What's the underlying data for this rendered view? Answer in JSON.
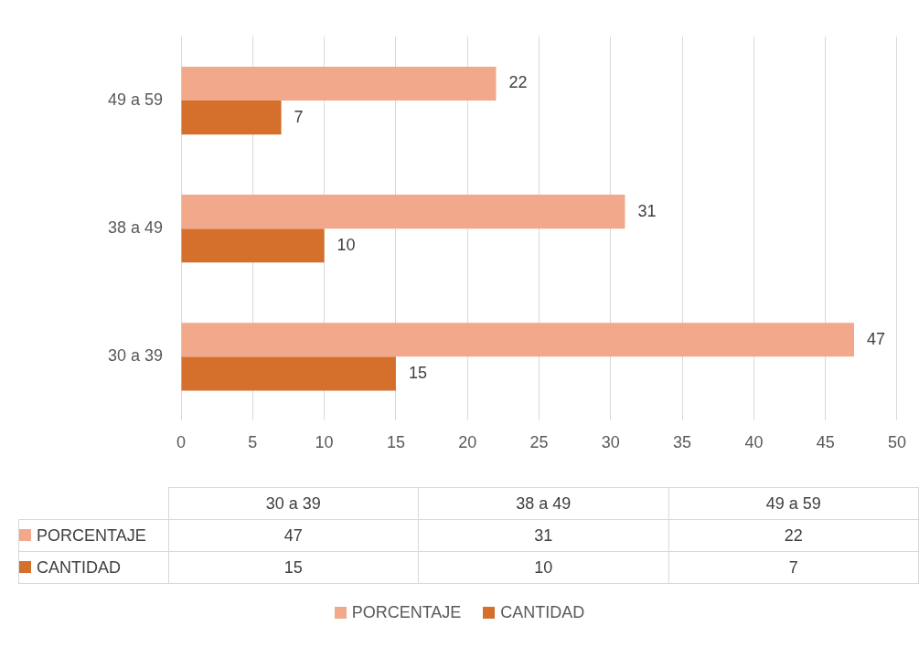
{
  "chart_data": {
    "type": "bar",
    "orientation": "horizontal",
    "categories": [
      "49 a 59",
      "38 a 49",
      "30 a 39"
    ],
    "series": [
      {
        "name": "PORCENTAJE",
        "color": "#f1a88b",
        "values": [
          22,
          31,
          47
        ]
      },
      {
        "name": "CANTIDAD",
        "color": "#d4702c",
        "values": [
          7,
          10,
          15
        ]
      }
    ],
    "xlim": [
      0,
      50
    ],
    "xticks": [
      0,
      5,
      10,
      15,
      20,
      25,
      30,
      35,
      40,
      45,
      50
    ],
    "annotations": [
      "47",
      "31",
      "22",
      "15",
      "10",
      "7"
    ],
    "grid": "x",
    "data_labels": true,
    "legend": "bottom"
  }
}
